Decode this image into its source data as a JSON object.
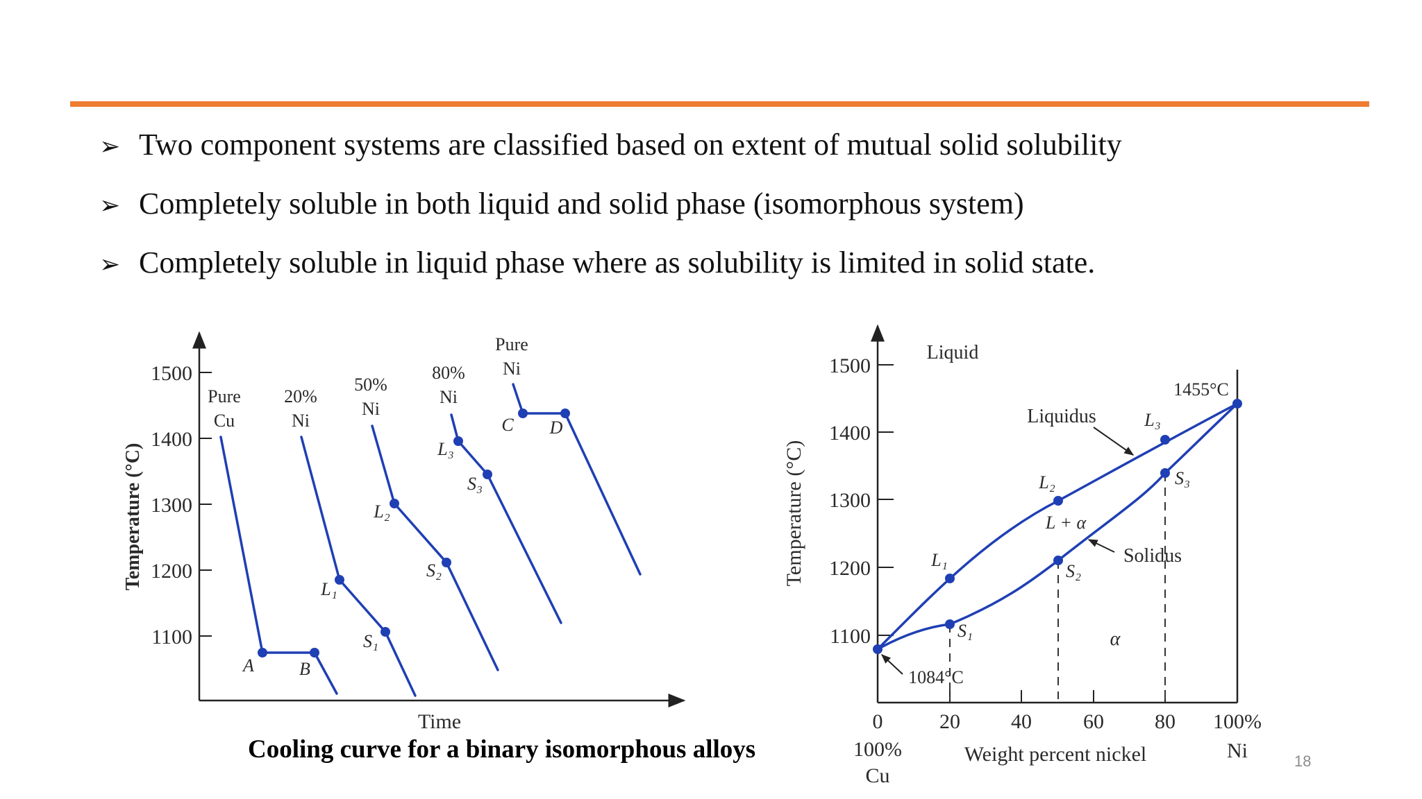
{
  "slide": {
    "accent_color": "#ed7d31",
    "bullet_symbol": "➢",
    "bullets": [
      "Two component systems are classified based on extent of mutual solid solubility",
      "Completely soluble in both liquid and solid phase (isomorphous system)",
      "Completely soluble in liquid phase where as solubility is limited in solid state."
    ],
    "caption": "Cooling curve for a binary isomorphous alloys",
    "slide_number": "18"
  },
  "cooling_curves": {
    "line_color": "#1f3fb4",
    "ylabel": "Temperature (°C)",
    "xlabel": "Time",
    "y_ticks": [
      "1500",
      "1400",
      "1300",
      "1200",
      "1100"
    ],
    "curves": [
      {
        "label": [
          "Pure",
          "Cu"
        ],
        "points": [
          "A",
          "B"
        ]
      },
      {
        "label": [
          "20%",
          "Ni"
        ],
        "points": [
          "L₁",
          "S₁"
        ]
      },
      {
        "label": [
          "50%",
          "Ni"
        ],
        "points": [
          "L₂",
          "S₂"
        ]
      },
      {
        "label": [
          "80%",
          "Ni"
        ],
        "points": [
          "L₃",
          "S₃"
        ]
      },
      {
        "label": [
          "Pure",
          "Ni"
        ],
        "points": [
          "C",
          "D"
        ]
      }
    ]
  },
  "phase_diagram": {
    "line_color": "#1f3fb4",
    "ylabel": "Temperature (°C)",
    "xlabel": "Weight percent nickel",
    "y_ticks": [
      "1500",
      "1400",
      "1300",
      "1200",
      "1100"
    ],
    "x_ticks": [
      "0",
      "20",
      "40",
      "60",
      "80",
      "100%"
    ],
    "left_end": [
      "100%",
      "Cu"
    ],
    "right_end": "Ni",
    "liquid_label": "Liquid",
    "liquidus_label": "Liquidus",
    "solidus_label": "Solidus",
    "two_phase_label": "L + α",
    "alpha_label": "α",
    "melt_cu": "1084°C",
    "melt_ni": "1455°C",
    "points": [
      "L₁",
      "S₁",
      "L₂",
      "S₂",
      "L₃",
      "S₃"
    ]
  }
}
